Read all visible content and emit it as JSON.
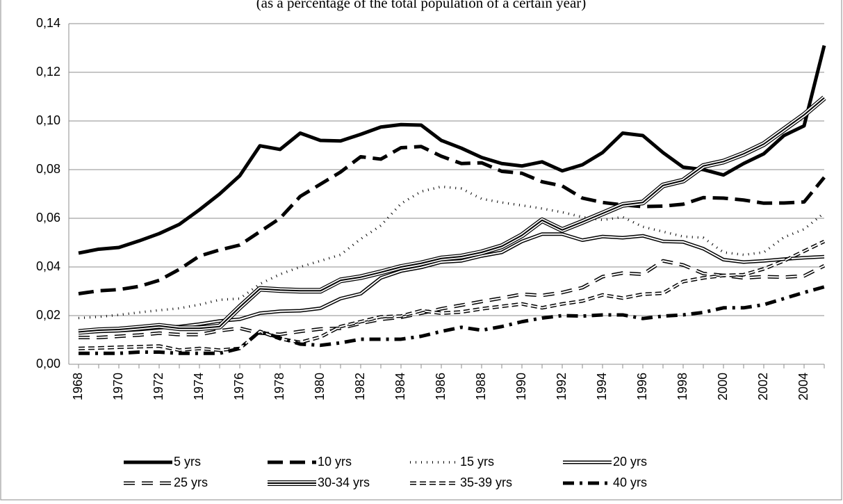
{
  "chart_data": {
    "type": "line",
    "title": "(as a percentage of the total population of a certain year)",
    "categories": [
      "1968",
      null,
      "1970",
      null,
      "1972",
      null,
      "1974",
      null,
      "1976",
      null,
      "1978",
      null,
      "1980",
      null,
      "1982",
      null,
      "1984",
      null,
      "1986",
      null,
      "1988",
      null,
      "1990",
      null,
      "1992",
      null,
      "1994",
      null,
      "1996",
      null,
      "1998",
      null,
      "2000",
      null,
      "2002",
      null,
      "2004",
      null
    ],
    "ylim": [
      0,
      0.14
    ],
    "yticks": [
      {
        "value": 0,
        "label": "0,00"
      },
      {
        "value": 0.02,
        "label": "0,02"
      },
      {
        "value": 0.04,
        "label": "0,04"
      },
      {
        "value": 0.06,
        "label": "0,06"
      },
      {
        "value": 0.08,
        "label": "0,08"
      },
      {
        "value": 0.1,
        "label": "0,10"
      },
      {
        "value": 0.12,
        "label": "0,12"
      },
      {
        "value": 0.14,
        "label": "0,14"
      }
    ],
    "grid": true,
    "legend": "bottom",
    "series": [
      {
        "name": "5 yrs",
        "color": "#000000",
        "line_style": "solid",
        "values": [
          0.0457,
          0.0473,
          0.048,
          0.0507,
          0.0537,
          0.0575,
          0.0635,
          0.07,
          0.0775,
          0.0898,
          0.0883,
          0.095,
          0.092,
          0.0918,
          0.0945,
          0.0975,
          0.0985,
          0.0983,
          0.092,
          0.0888,
          0.085,
          0.0825,
          0.0815,
          0.0832,
          0.0795,
          0.082,
          0.087,
          0.095,
          0.094,
          0.087,
          0.081,
          0.08,
          0.0778,
          0.0825,
          0.0865,
          0.094,
          0.098,
          0.131
        ]
      },
      {
        "name": "10 yrs",
        "color": "#000000",
        "line_style": "dash",
        "values": [
          0.029,
          0.0302,
          0.0307,
          0.032,
          0.0345,
          0.039,
          0.0445,
          0.047,
          0.049,
          0.0545,
          0.06,
          0.069,
          0.074,
          0.079,
          0.0853,
          0.0843,
          0.089,
          0.0895,
          0.0855,
          0.0825,
          0.0828,
          0.0793,
          0.0785,
          0.075,
          0.0733,
          0.0683,
          0.0665,
          0.0655,
          0.0648,
          0.065,
          0.0658,
          0.0685,
          0.0683,
          0.0675,
          0.0662,
          0.0663,
          0.0667,
          0.0768
        ]
      },
      {
        "name": "15 yrs",
        "color": "#000000",
        "line_style": "dot",
        "values": [
          0.019,
          0.0195,
          0.0203,
          0.0213,
          0.0222,
          0.023,
          0.0245,
          0.0265,
          0.027,
          0.033,
          0.037,
          0.04,
          0.0425,
          0.045,
          0.0515,
          0.057,
          0.066,
          0.071,
          0.073,
          0.0722,
          0.068,
          0.0665,
          0.0653,
          0.064,
          0.0625,
          0.0605,
          0.0593,
          0.0605,
          0.0565,
          0.0545,
          0.0525,
          0.052,
          0.046,
          0.045,
          0.046,
          0.0522,
          0.0555,
          0.0622
        ]
      },
      {
        "name": "20 yrs",
        "color": "#000000",
        "line_style": "double",
        "values": [
          0.013,
          0.0135,
          0.0138,
          0.0143,
          0.015,
          0.0155,
          0.0165,
          0.0178,
          0.0185,
          0.021,
          0.0218,
          0.022,
          0.023,
          0.027,
          0.029,
          0.0355,
          0.0383,
          0.0398,
          0.042,
          0.0425,
          0.0445,
          0.046,
          0.0505,
          0.0535,
          0.0535,
          0.051,
          0.0525,
          0.052,
          0.0528,
          0.0505,
          0.0503,
          0.0475,
          0.043,
          0.042,
          0.0425,
          0.0432,
          0.0438,
          0.0442
        ]
      },
      {
        "name": "25 yrs",
        "color": "#000000",
        "line_style": "double-dash",
        "values": [
          0.011,
          0.011,
          0.0115,
          0.012,
          0.0128,
          0.0122,
          0.0122,
          0.0138,
          0.0148,
          0.0128,
          0.0123,
          0.0135,
          0.0145,
          0.0148,
          0.0168,
          0.0185,
          0.0193,
          0.021,
          0.0228,
          0.0243,
          0.0258,
          0.0272,
          0.0288,
          0.0283,
          0.0295,
          0.0315,
          0.036,
          0.0375,
          0.037,
          0.0425,
          0.0408,
          0.0373,
          0.0365,
          0.0355,
          0.036,
          0.0358,
          0.0363,
          0.0405
        ]
      },
      {
        "name": "30-34 yrs",
        "color": "#000000",
        "line_style": "triple",
        "values": [
          0.0133,
          0.014,
          0.0143,
          0.015,
          0.0158,
          0.0148,
          0.0148,
          0.0155,
          0.0235,
          0.031,
          0.0305,
          0.0302,
          0.0302,
          0.0345,
          0.0358,
          0.0378,
          0.04,
          0.0415,
          0.0435,
          0.0443,
          0.046,
          0.0485,
          0.053,
          0.0592,
          0.0552,
          0.0585,
          0.062,
          0.0655,
          0.0665,
          0.0735,
          0.0755,
          0.0815,
          0.0833,
          0.0865,
          0.0905,
          0.0965,
          0.1025,
          0.1095
        ]
      },
      {
        "name": "35-39 yrs",
        "color": "#000000",
        "line_style": "double-dash-short",
        "values": [
          0.0065,
          0.0067,
          0.007,
          0.0072,
          0.0075,
          0.0058,
          0.0065,
          0.0058,
          0.0065,
          0.0135,
          0.0105,
          0.009,
          0.0112,
          0.0155,
          0.0175,
          0.0195,
          0.0198,
          0.022,
          0.021,
          0.0215,
          0.0228,
          0.0238,
          0.0248,
          0.0232,
          0.0248,
          0.026,
          0.0285,
          0.0272,
          0.0288,
          0.0292,
          0.034,
          0.0355,
          0.0365,
          0.0368,
          0.0392,
          0.0425,
          0.0465,
          0.0505
        ]
      },
      {
        "name": "40 yrs",
        "color": "#000000",
        "line_style": "dash-dot",
        "values": [
          0.0045,
          0.0045,
          0.0045,
          0.005,
          0.005,
          0.0045,
          0.0045,
          0.0045,
          0.0065,
          0.0135,
          0.0108,
          0.0083,
          0.0078,
          0.0088,
          0.0103,
          0.0103,
          0.0103,
          0.0115,
          0.0135,
          0.0152,
          0.014,
          0.0155,
          0.0175,
          0.019,
          0.02,
          0.0198,
          0.0203,
          0.0203,
          0.0188,
          0.0198,
          0.0203,
          0.0213,
          0.0232,
          0.0232,
          0.0245,
          0.027,
          0.0295,
          0.0318
        ]
      }
    ]
  }
}
